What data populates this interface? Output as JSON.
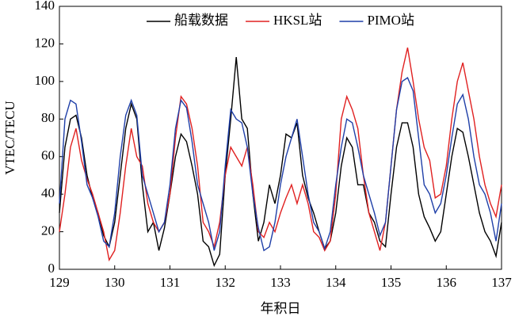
{
  "chart_data": {
    "type": "line",
    "xlabel": "年积日",
    "ylabel": "VTEC/TECU",
    "x": [
      129,
      129.1,
      129.2,
      129.3,
      129.4,
      129.5,
      129.6,
      129.7,
      129.8,
      129.9,
      130,
      130.1,
      130.2,
      130.3,
      130.4,
      130.5,
      130.6,
      130.7,
      130.8,
      130.9,
      131,
      131.1,
      131.2,
      131.3,
      131.4,
      131.5,
      131.6,
      131.7,
      131.8,
      131.9,
      132,
      132.1,
      132.2,
      132.3,
      132.4,
      132.5,
      132.6,
      132.7,
      132.8,
      132.9,
      133,
      133.1,
      133.2,
      133.3,
      133.4,
      133.5,
      133.6,
      133.7,
      133.8,
      133.9,
      134,
      134.1,
      134.2,
      134.3,
      134.4,
      134.5,
      134.6,
      134.7,
      134.8,
      134.9,
      135,
      135.1,
      135.2,
      135.3,
      135.4,
      135.5,
      135.6,
      135.7,
      135.8,
      135.9,
      136,
      136.1,
      136.2,
      136.3,
      136.4,
      136.5,
      136.6,
      136.7,
      136.8,
      136.9,
      137
    ],
    "series": [
      {
        "name": "船载数据",
        "color": "#000000",
        "values": [
          30,
          65,
          80,
          82,
          70,
          50,
          38,
          30,
          18,
          12,
          25,
          50,
          75,
          88,
          80,
          45,
          20,
          25,
          10,
          22,
          40,
          60,
          72,
          68,
          55,
          40,
          15,
          12,
          2,
          8,
          50,
          80,
          113,
          80,
          75,
          40,
          15,
          25,
          45,
          35,
          50,
          72,
          70,
          78,
          50,
          38,
          30,
          20,
          11,
          15,
          30,
          55,
          70,
          65,
          45,
          45,
          30,
          25,
          15,
          12,
          40,
          65,
          78,
          78,
          65,
          40,
          28,
          22,
          15,
          20,
          40,
          60,
          75,
          73,
          60,
          45,
          30,
          20,
          15,
          7,
          25
        ]
      },
      {
        "name": "HKSL站",
        "color": "#e02020",
        "values": [
          20,
          40,
          65,
          75,
          58,
          48,
          40,
          30,
          20,
          5,
          10,
          30,
          55,
          75,
          60,
          55,
          35,
          25,
          20,
          25,
          40,
          70,
          92,
          88,
          75,
          55,
          25,
          20,
          12,
          25,
          50,
          65,
          60,
          55,
          65,
          45,
          20,
          17,
          25,
          20,
          30,
          38,
          45,
          35,
          45,
          35,
          20,
          17,
          10,
          15,
          40,
          80,
          92,
          85,
          75,
          50,
          30,
          20,
          10,
          25,
          55,
          85,
          105,
          118,
          100,
          80,
          65,
          58,
          38,
          40,
          55,
          80,
          100,
          110,
          95,
          80,
          60,
          45,
          35,
          28,
          45
        ]
      },
      {
        "name": "PIMO站",
        "color": "#1f3fa8",
        "values": [
          35,
          80,
          90,
          88,
          68,
          45,
          38,
          28,
          15,
          12,
          30,
          60,
          82,
          90,
          82,
          50,
          40,
          30,
          20,
          25,
          45,
          75,
          90,
          86,
          68,
          45,
          35,
          25,
          10,
          20,
          55,
          85,
          80,
          78,
          65,
          40,
          22,
          10,
          12,
          25,
          45,
          60,
          70,
          80,
          60,
          40,
          25,
          20,
          11,
          20,
          45,
          65,
          80,
          78,
          65,
          50,
          40,
          30,
          18,
          25,
          55,
          85,
          100,
          102,
          95,
          70,
          45,
          40,
          30,
          35,
          50,
          70,
          88,
          93,
          80,
          60,
          45,
          40,
          30,
          15,
          35
        ]
      }
    ],
    "xlim": [
      129,
      137
    ],
    "xticks": [
      129,
      130,
      131,
      132,
      133,
      134,
      135,
      136,
      137
    ],
    "ylim": [
      0,
      140
    ],
    "yticks": [
      0,
      20,
      40,
      60,
      80,
      100,
      120,
      140
    ],
    "legend": "upper center"
  }
}
